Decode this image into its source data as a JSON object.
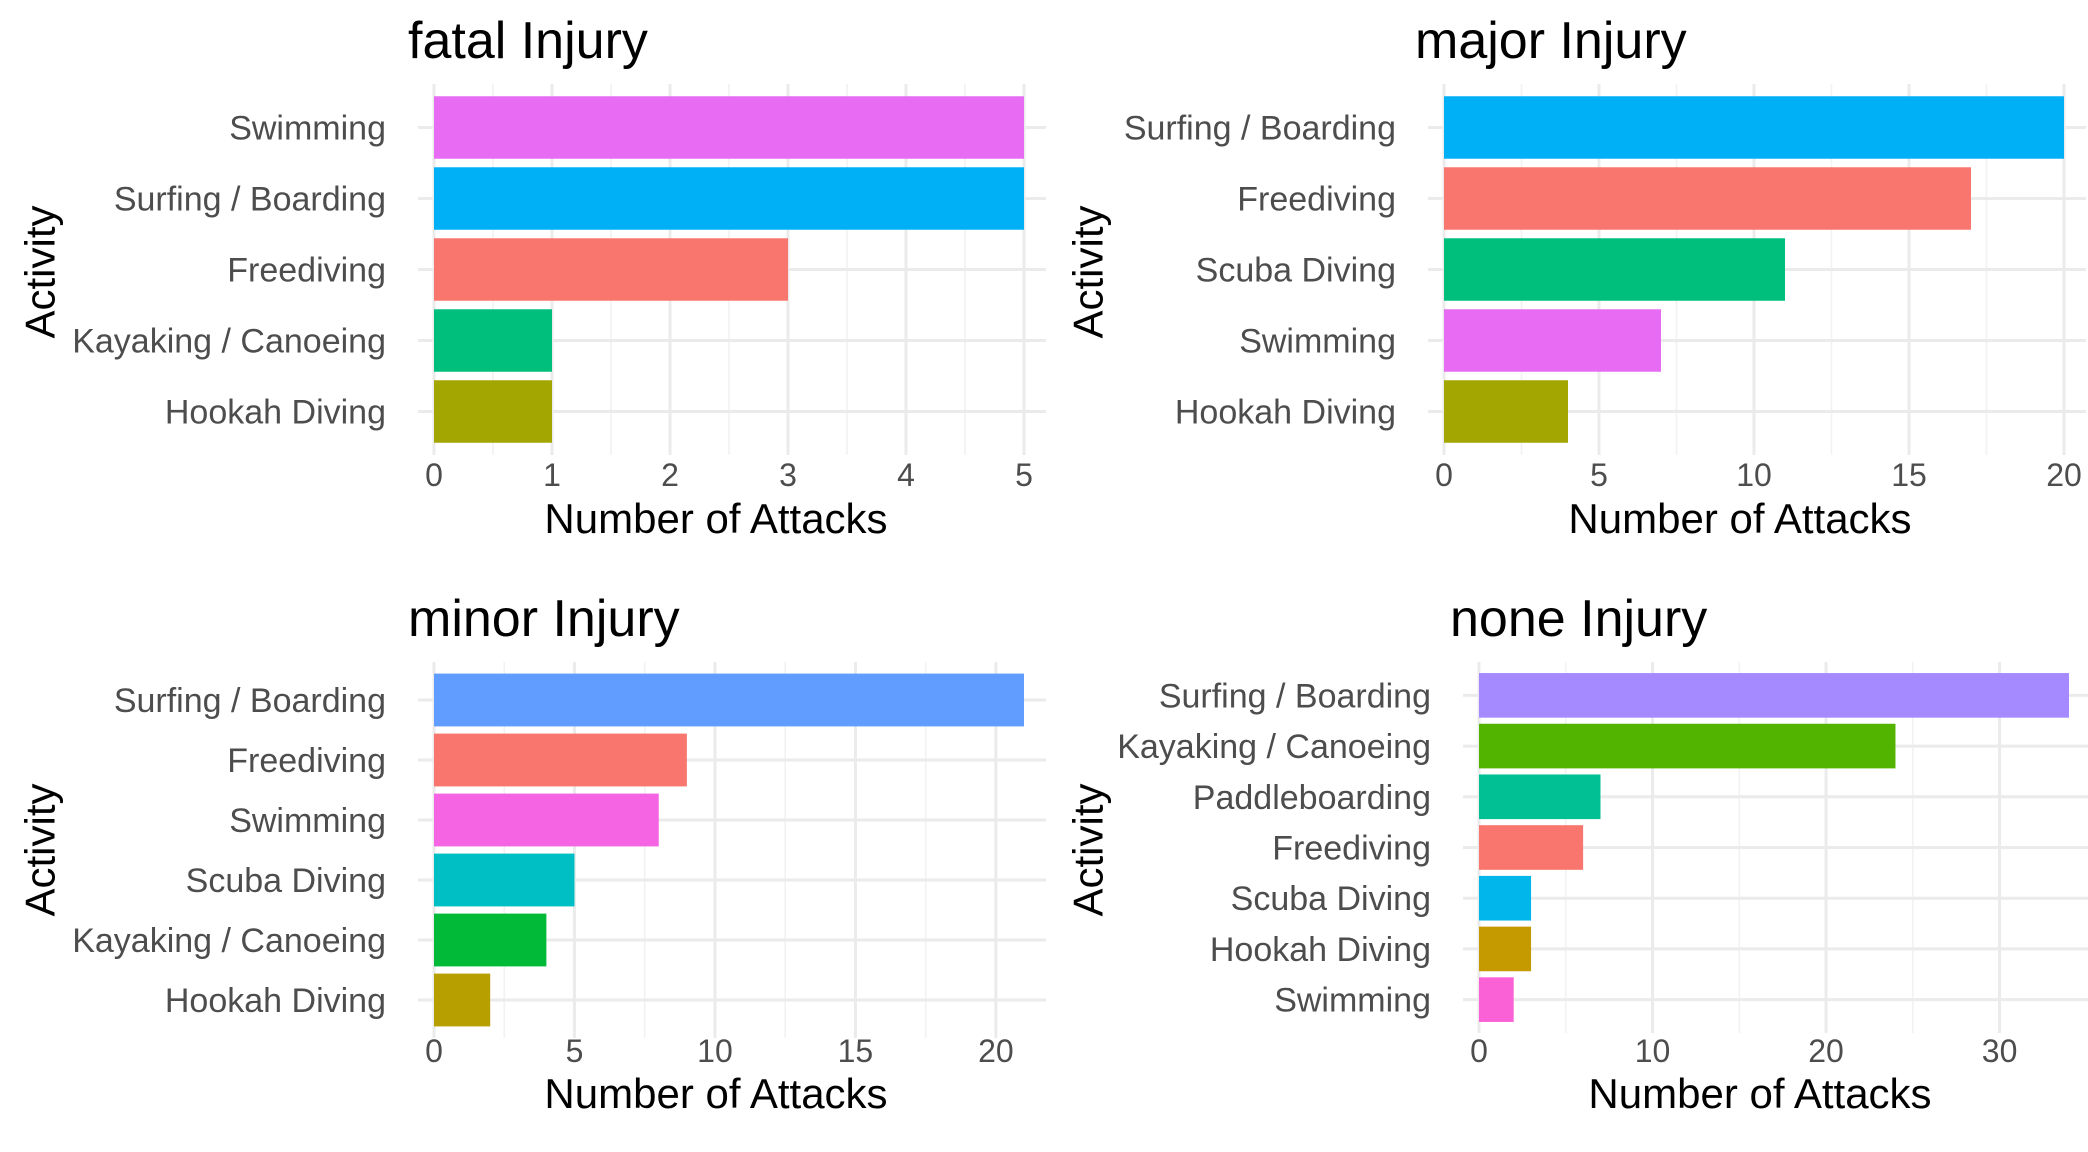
{
  "chart_data": [
    {
      "type": "bar",
      "orientation": "horizontal",
      "title": "fatal Injury",
      "xlabel": "Number of Attacks",
      "ylabel": "Activity",
      "categories": [
        "Swimming",
        "Surfing / Boarding",
        "Freediving",
        "Kayaking / Canoeing",
        "Hookah Diving"
      ],
      "values": [
        5,
        5,
        3,
        1,
        1
      ],
      "colors": [
        "#E76BF3",
        "#00B0F6",
        "#F8766D",
        "#00BF7D",
        "#A3A500"
      ],
      "xlim": [
        0,
        5
      ],
      "xticks": [
        0,
        1,
        2,
        3,
        4,
        5
      ],
      "grid": true,
      "legend": "none"
    },
    {
      "type": "bar",
      "orientation": "horizontal",
      "title": "major Injury",
      "xlabel": "Number of Attacks",
      "ylabel": "Activity",
      "categories": [
        "Surfing / Boarding",
        "Freediving",
        "Scuba Diving",
        "Swimming",
        "Hookah Diving"
      ],
      "values": [
        20,
        17,
        11,
        7,
        4
      ],
      "colors": [
        "#00B0F6",
        "#F8766D",
        "#00BF7D",
        "#E76BF3",
        "#A3A500"
      ],
      "xlim": [
        0,
        20
      ],
      "xticks": [
        0,
        5,
        10,
        15,
        20
      ],
      "grid": true,
      "legend": "none"
    },
    {
      "type": "bar",
      "orientation": "horizontal",
      "title": "minor Injury",
      "xlabel": "Number of Attacks",
      "ylabel": "Activity",
      "categories": [
        "Surfing / Boarding",
        "Freediving",
        "Swimming",
        "Scuba Diving",
        "Kayaking / Canoeing",
        "Hookah Diving"
      ],
      "values": [
        21,
        9,
        8,
        5,
        4,
        2
      ],
      "colors": [
        "#619CFF",
        "#F8766D",
        "#F564E3",
        "#00BFC4",
        "#00BA38",
        "#B79F00"
      ],
      "xlim": [
        0,
        21
      ],
      "xticks": [
        0,
        5,
        10,
        15,
        20
      ],
      "grid": true,
      "legend": "none"
    },
    {
      "type": "bar",
      "orientation": "horizontal",
      "title": "none Injury",
      "xlabel": "Number of Attacks",
      "ylabel": "Activity",
      "categories": [
        "Surfing / Boarding",
        "Kayaking / Canoeing",
        "Paddleboarding",
        "Freediving",
        "Scuba Diving",
        "Hookah Diving",
        "Swimming"
      ],
      "values": [
        34,
        24,
        7,
        6,
        3,
        3,
        2
      ],
      "colors": [
        "#A58AFF",
        "#53B400",
        "#00C094",
        "#F8766D",
        "#00B6EB",
        "#C49A00",
        "#FB61D7"
      ],
      "xlim": [
        0,
        34
      ],
      "xticks": [
        0,
        10,
        20,
        30
      ],
      "grid": true,
      "legend": "none"
    }
  ]
}
